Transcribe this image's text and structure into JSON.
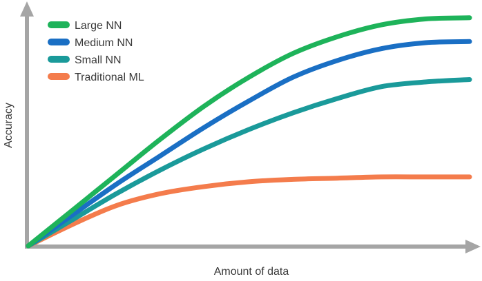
{
  "chart_data": {
    "type": "line",
    "title": "",
    "xlabel": "Amount of data",
    "ylabel": "Accuracy",
    "xlim": [
      0,
      1
    ],
    "ylim": [
      0,
      1
    ],
    "grid": false,
    "axis_tick_labels": false,
    "legend_position": "top-left",
    "x": [
      0,
      0.1,
      0.2,
      0.3,
      0.4,
      0.5,
      0.6,
      0.7,
      0.8,
      0.9,
      1.0
    ],
    "series": [
      {
        "name": "Large NN",
        "color": "#1eb35a",
        "values": [
          0,
          0.15,
          0.3,
          0.45,
          0.59,
          0.71,
          0.81,
          0.88,
          0.93,
          0.955,
          0.96
        ]
      },
      {
        "name": "Medium NN",
        "color": "#1a6fc4",
        "values": [
          0,
          0.13,
          0.26,
          0.38,
          0.5,
          0.61,
          0.71,
          0.78,
          0.83,
          0.855,
          0.86
        ]
      },
      {
        "name": "Small NN",
        "color": "#1a9a9a",
        "values": [
          0,
          0.11,
          0.22,
          0.32,
          0.41,
          0.49,
          0.56,
          0.62,
          0.67,
          0.69,
          0.7
        ]
      },
      {
        "name": "Traditional ML",
        "color": "#f47c4c",
        "values": [
          0,
          0.09,
          0.17,
          0.22,
          0.25,
          0.27,
          0.28,
          0.285,
          0.29,
          0.29,
          0.29
        ]
      }
    ]
  }
}
